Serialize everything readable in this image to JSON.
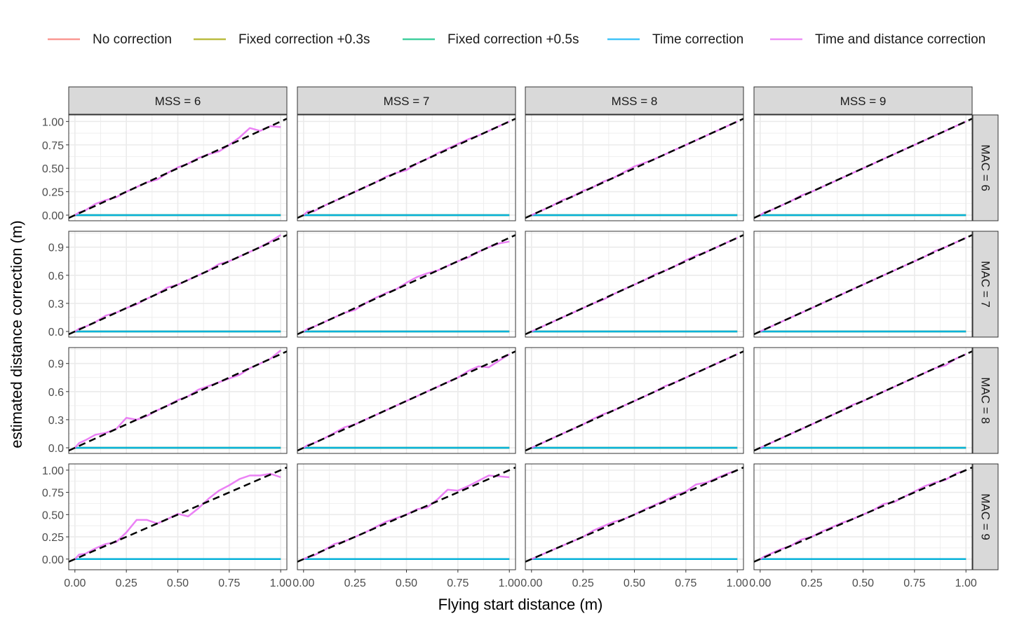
{
  "chart_data": {
    "type": "line",
    "xlabel": "Flying start distance (m)",
    "ylabel": "estimated distance correction (m)",
    "facet_cols": {
      "variable": "MSS",
      "values": [
        6,
        7,
        8,
        9
      ],
      "labels": [
        "MSS = 6",
        "MSS = 7",
        "MSS = 8",
        "MSS = 9"
      ]
    },
    "facet_rows": {
      "variable": "MAC",
      "values": [
        6,
        7,
        8,
        9
      ],
      "labels": [
        "MAC = 6",
        "MAC = 7",
        "MAC = 8",
        "MAC = 9"
      ]
    },
    "x_ticks": [
      0,
      0.25,
      0.5,
      0.75,
      1.0
    ],
    "x_tick_labels": [
      "0.00",
      "0.25",
      "0.50",
      "0.75",
      "1.00"
    ],
    "xlim": [
      -0.03,
      1.03
    ],
    "rows": [
      {
        "ylim": [
          -0.06,
          1.07
        ],
        "y_ticks": [
          0,
          0.25,
          0.5,
          0.75,
          1.0
        ],
        "y_tick_labels": [
          "0.00",
          "0.25",
          "0.50",
          "0.75",
          "1.00"
        ]
      },
      {
        "ylim": [
          -0.06,
          1.07
        ],
        "y_ticks": [
          0,
          0.3,
          0.6,
          0.9
        ],
        "y_tick_labels": [
          "0.0",
          "0.3",
          "0.6",
          "0.9"
        ]
      },
      {
        "ylim": [
          -0.06,
          1.07
        ],
        "y_ticks": [
          0,
          0.3,
          0.6,
          0.9
        ],
        "y_tick_labels": [
          "0.0",
          "0.3",
          "0.6",
          "0.9"
        ]
      },
      {
        "ylim": [
          -0.12,
          1.07
        ],
        "y_ticks": [
          0,
          0.25,
          0.5,
          0.75,
          1.0
        ],
        "y_tick_labels": [
          "0.00",
          "0.25",
          "0.50",
          "0.75",
          "1.00"
        ]
      }
    ],
    "legend_position": "top",
    "series": [
      {
        "name": "No correction",
        "color": "#F8766D"
      },
      {
        "name": "Fixed correction +0.3s",
        "color": "#A3A500"
      },
      {
        "name": "Fixed correction +0.5s",
        "color": "#00BF7D"
      },
      {
        "name": "Time correction",
        "color": "#00B0F6"
      },
      {
        "name": "Time and distance correction",
        "color": "#E76BF3"
      }
    ],
    "flat_series_value": 0,
    "reference_line": {
      "style": "dashed",
      "color": "#000000",
      "slope": 1,
      "intercept": 0
    },
    "time_and_distance_correction": {
      "x": [
        0,
        0.02,
        0.05,
        0.1,
        0.15,
        0.2,
        0.25,
        0.3,
        0.35,
        0.4,
        0.45,
        0.5,
        0.55,
        0.6,
        0.65,
        0.7,
        0.75,
        0.8,
        0.85,
        0.9,
        0.95,
        1.0
      ],
      "panels": [
        {
          "MAC": 6,
          "MSS": 6,
          "y": [
            0.0,
            0.03,
            0.05,
            0.12,
            0.16,
            0.19,
            0.25,
            0.3,
            0.35,
            0.38,
            0.45,
            0.51,
            0.55,
            0.61,
            0.65,
            0.68,
            0.75,
            0.83,
            0.93,
            0.9,
            0.95,
            0.94
          ]
        },
        {
          "MAC": 6,
          "MSS": 7,
          "y": [
            0.0,
            0.04,
            0.04,
            0.1,
            0.15,
            0.2,
            0.25,
            0.3,
            0.35,
            0.41,
            0.45,
            0.48,
            0.55,
            0.6,
            0.66,
            0.71,
            0.76,
            0.81,
            0.85,
            0.9,
            0.95,
            1.0
          ]
        },
        {
          "MAC": 6,
          "MSS": 8,
          "y": [
            0.0,
            0.02,
            0.05,
            0.1,
            0.16,
            0.2,
            0.26,
            0.3,
            0.36,
            0.4,
            0.46,
            0.52,
            0.56,
            0.6,
            0.65,
            0.7,
            0.75,
            0.8,
            0.85,
            0.9,
            0.95,
            1.0
          ]
        },
        {
          "MAC": 6,
          "MSS": 9,
          "y": [
            0.0,
            0.03,
            0.05,
            0.1,
            0.15,
            0.21,
            0.25,
            0.3,
            0.35,
            0.4,
            0.45,
            0.5,
            0.55,
            0.6,
            0.65,
            0.7,
            0.75,
            0.8,
            0.85,
            0.9,
            0.95,
            1.0
          ]
        },
        {
          "MAC": 7,
          "MSS": 6,
          "y": [
            0.0,
            0.03,
            0.05,
            0.1,
            0.17,
            0.2,
            0.25,
            0.29,
            0.35,
            0.4,
            0.47,
            0.5,
            0.55,
            0.6,
            0.65,
            0.72,
            0.75,
            0.8,
            0.85,
            0.9,
            0.96,
            1.03
          ]
        },
        {
          "MAC": 7,
          "MSS": 7,
          "y": [
            0.0,
            0.03,
            0.05,
            0.1,
            0.15,
            0.2,
            0.23,
            0.3,
            0.36,
            0.41,
            0.45,
            0.52,
            0.58,
            0.62,
            0.65,
            0.7,
            0.75,
            0.79,
            0.85,
            0.9,
            0.94,
            0.96
          ]
        },
        {
          "MAC": 7,
          "MSS": 8,
          "y": [
            0.0,
            0.02,
            0.05,
            0.1,
            0.15,
            0.2,
            0.25,
            0.3,
            0.34,
            0.4,
            0.45,
            0.5,
            0.55,
            0.61,
            0.65,
            0.7,
            0.76,
            0.81,
            0.85,
            0.9,
            0.95,
            1.0
          ]
        },
        {
          "MAC": 7,
          "MSS": 9,
          "y": [
            0.0,
            0.02,
            0.05,
            0.1,
            0.15,
            0.2,
            0.25,
            0.3,
            0.35,
            0.4,
            0.45,
            0.5,
            0.55,
            0.6,
            0.65,
            0.7,
            0.75,
            0.8,
            0.86,
            0.9,
            0.95,
            1.0
          ]
        },
        {
          "MAC": 8,
          "MSS": 6,
          "y": [
            0.0,
            0.05,
            0.08,
            0.14,
            0.16,
            0.2,
            0.32,
            0.3,
            0.34,
            0.4,
            0.45,
            0.51,
            0.55,
            0.62,
            0.66,
            0.7,
            0.74,
            0.78,
            0.85,
            0.9,
            0.95,
            1.04
          ]
        },
        {
          "MAC": 8,
          "MSS": 7,
          "y": [
            0.0,
            0.03,
            0.05,
            0.1,
            0.16,
            0.22,
            0.25,
            0.3,
            0.35,
            0.4,
            0.45,
            0.5,
            0.55,
            0.6,
            0.65,
            0.7,
            0.75,
            0.82,
            0.87,
            0.86,
            0.93,
            1.0
          ]
        },
        {
          "MAC": 8,
          "MSS": 8,
          "y": [
            0.0,
            0.02,
            0.05,
            0.1,
            0.15,
            0.2,
            0.25,
            0.31,
            0.36,
            0.4,
            0.45,
            0.5,
            0.55,
            0.6,
            0.66,
            0.7,
            0.75,
            0.8,
            0.85,
            0.9,
            0.95,
            1.0
          ]
        },
        {
          "MAC": 8,
          "MSS": 9,
          "y": [
            0.0,
            0.02,
            0.05,
            0.1,
            0.15,
            0.2,
            0.25,
            0.3,
            0.35,
            0.4,
            0.46,
            0.5,
            0.55,
            0.6,
            0.65,
            0.7,
            0.75,
            0.8,
            0.85,
            0.88,
            0.95,
            1.0
          ]
        },
        {
          "MAC": 9,
          "MSS": 6,
          "y": [
            0.0,
            0.05,
            0.06,
            0.12,
            0.17,
            0.19,
            0.3,
            0.44,
            0.44,
            0.4,
            0.45,
            0.51,
            0.48,
            0.57,
            0.68,
            0.77,
            0.83,
            0.9,
            0.94,
            0.94,
            0.96,
            0.92
          ]
        },
        {
          "MAC": 9,
          "MSS": 7,
          "y": [
            0.0,
            0.02,
            0.04,
            0.1,
            0.17,
            0.2,
            0.25,
            0.3,
            0.36,
            0.42,
            0.46,
            0.5,
            0.56,
            0.58,
            0.67,
            0.78,
            0.77,
            0.82,
            0.88,
            0.94,
            0.93,
            0.92
          ]
        },
        {
          "MAC": 9,
          "MSS": 8,
          "y": [
            0.0,
            0.02,
            0.05,
            0.1,
            0.15,
            0.2,
            0.25,
            0.32,
            0.37,
            0.42,
            0.45,
            0.5,
            0.56,
            0.61,
            0.66,
            0.72,
            0.76,
            0.84,
            0.86,
            0.91,
            0.96,
            1.0
          ]
        },
        {
          "MAC": 9,
          "MSS": 9,
          "y": [
            0.0,
            0.03,
            0.06,
            0.11,
            0.15,
            0.22,
            0.25,
            0.31,
            0.36,
            0.41,
            0.45,
            0.5,
            0.55,
            0.62,
            0.64,
            0.7,
            0.76,
            0.82,
            0.86,
            0.89,
            0.96,
            1.0
          ]
        }
      ]
    }
  }
}
